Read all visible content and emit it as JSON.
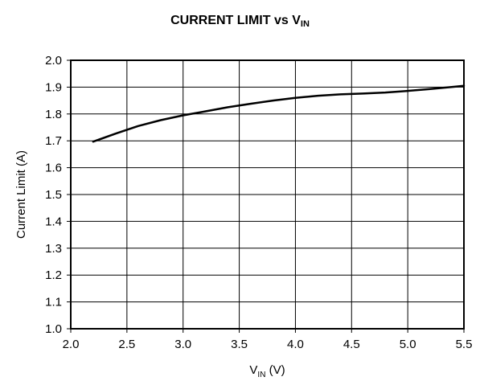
{
  "chart_data": {
    "type": "line",
    "title": {
      "main": "CURRENT LIMIT vs V",
      "sub": "IN"
    },
    "xlabel": {
      "main": "V",
      "sub": "IN",
      "unit": " (V)"
    },
    "ylabel": "Current Limit (A)",
    "xlim": [
      2.0,
      5.5
    ],
    "ylim": [
      1.0,
      2.0
    ],
    "x_ticks": [
      "2.0",
      "2.5",
      "3.0",
      "3.5",
      "4.0",
      "4.5",
      "5.0",
      "5.5"
    ],
    "y_ticks": [
      "1.0",
      "1.1",
      "1.2",
      "1.3",
      "1.4",
      "1.5",
      "1.6",
      "1.7",
      "1.8",
      "1.9",
      "2.0"
    ],
    "grid": true,
    "series": [
      {
        "color": "#000000",
        "x": [
          2.2,
          2.4,
          2.6,
          2.8,
          3.0,
          3.2,
          3.4,
          3.6,
          3.8,
          4.0,
          4.2,
          4.4,
          4.6,
          4.8,
          5.0,
          5.2,
          5.4,
          5.5
        ],
        "y": [
          1.697,
          1.727,
          1.755,
          1.777,
          1.795,
          1.81,
          1.825,
          1.838,
          1.85,
          1.86,
          1.868,
          1.873,
          1.876,
          1.88,
          1.886,
          1.893,
          1.901,
          1.905
        ]
      }
    ]
  }
}
